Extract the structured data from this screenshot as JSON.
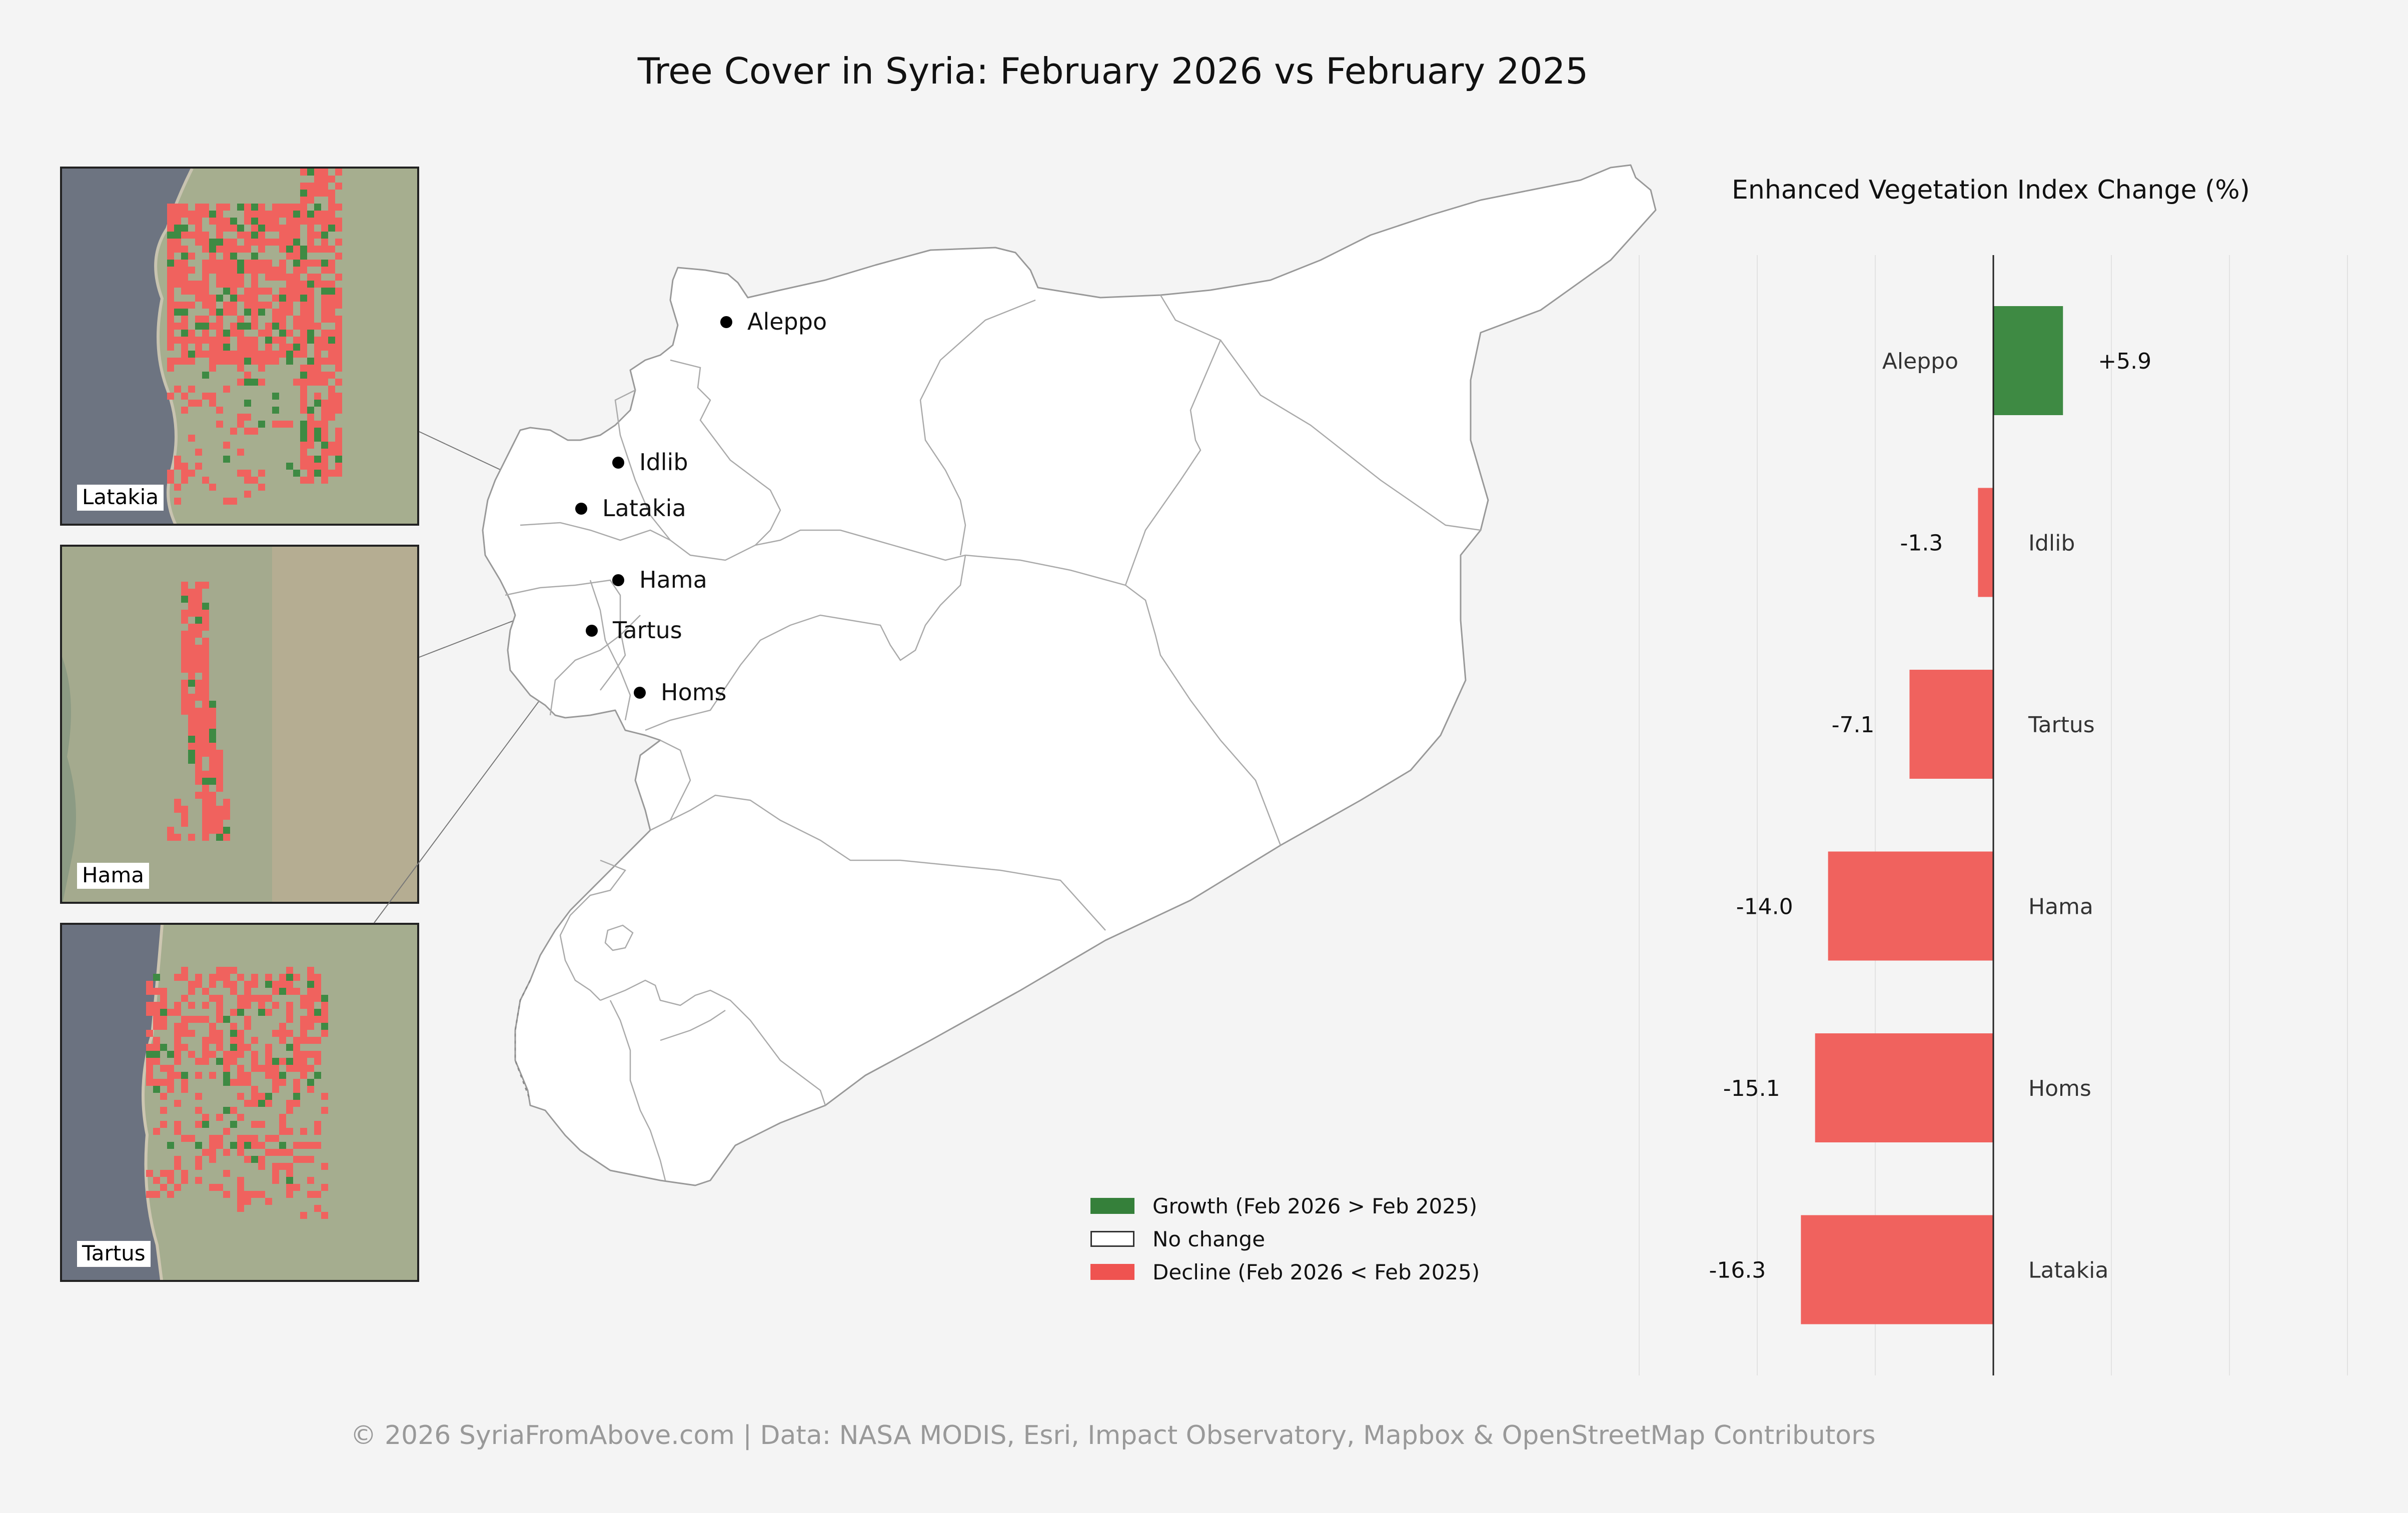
{
  "title": "Tree Cover in Syria: February 2026 vs February 2025",
  "footer": "© 2026 SyriaFromAbove.com | Data: NASA MODIS, Esri, Impact Observatory, Mapbox & OpenStreetMap Contributors",
  "insets": [
    {
      "label": "Latakia"
    },
    {
      "label": "Hama"
    },
    {
      "label": "Tartus"
    }
  ],
  "map": {
    "cities": [
      "Aleppo",
      "Idlib",
      "Latakia",
      "Hama",
      "Tartus",
      "Homs"
    ]
  },
  "legend": {
    "items": [
      {
        "label": "Growth (Feb 2026 > Feb 2025)",
        "color": "#35803a"
      },
      {
        "label": "No change",
        "color": "#ffffff"
      },
      {
        "label": "Decline (Feb 2026 < Feb 2025)",
        "color": "#ef5350"
      }
    ]
  },
  "colors": {
    "growth": "#3e8a43",
    "decline": "#f0625e",
    "background": "#f4f4f4"
  },
  "chart_data": {
    "type": "bar",
    "orientation": "horizontal",
    "title": "Enhanced Vegetation Index Change (%)",
    "categories": [
      "Aleppo",
      "Idlib",
      "Tartus",
      "Hama",
      "Homs",
      "Latakia"
    ],
    "values": [
      5.9,
      -1.3,
      -7.1,
      -14.0,
      -15.1,
      -16.3
    ],
    "value_labels": [
      "+5.9",
      "-1.3",
      "-7.1",
      "-14.0",
      "-15.1",
      "-16.3"
    ],
    "xlim": [
      -30,
      30
    ],
    "xlabel": "",
    "ylabel": "",
    "grid": true
  }
}
